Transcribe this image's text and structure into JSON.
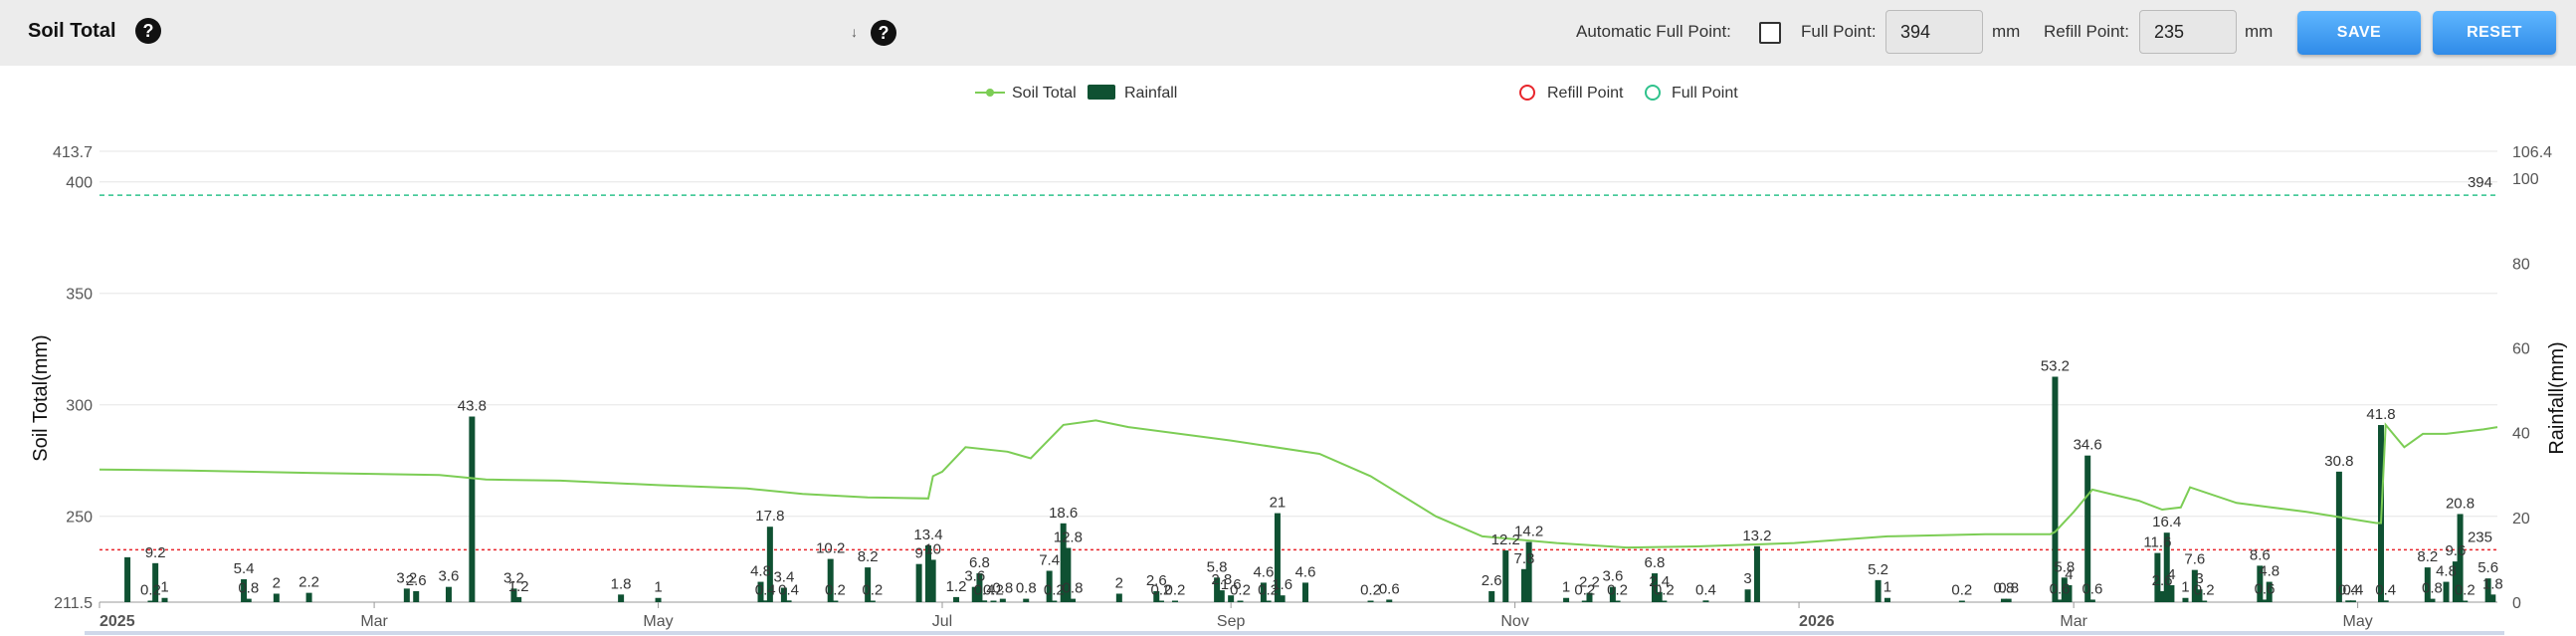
{
  "toolbar": {
    "title": "Soil Total",
    "auto_full_point_label": "Automatic Full Point:",
    "full_point_label": "Full Point:",
    "full_point_value": "394",
    "full_point_unit": "mm",
    "refill_point_label": "Refill Point:",
    "refill_point_value": "235",
    "refill_point_unit": "mm",
    "save_label": "SAVE",
    "reset_label": "RESET",
    "tick_glyph": "↓",
    "help_glyph": "?"
  },
  "chart_data": {
    "type": "bar",
    "legend": {
      "soil_total": "Soil Total",
      "rainfall": "Rainfall",
      "refill_point": "Refill Point",
      "full_point": "Full Point"
    },
    "ylabel_left": "Soil Total(mm)",
    "ylabel_right": "Rainfall(mm)",
    "left_axis": {
      "min": 211.5,
      "max": 413.7,
      "ticks": [
        "211.5",
        "250",
        "300",
        "350",
        "400",
        "413.7"
      ]
    },
    "right_axis": {
      "min": 0,
      "max": 106.4,
      "ticks": [
        "0",
        "20",
        "40",
        "60",
        "80",
        "100",
        "106.4"
      ]
    },
    "x_axis": {
      "start": "2025-01-01",
      "end": "2026-05-31",
      "ticks": [
        {
          "date": "2025-01-01",
          "label": "2025",
          "bold": true
        },
        {
          "date": "2025-03-01",
          "label": "Mar"
        },
        {
          "date": "2025-05-01",
          "label": "May"
        },
        {
          "date": "2025-07-01",
          "label": "Jul"
        },
        {
          "date": "2025-09-01",
          "label": "Sep"
        },
        {
          "date": "2025-11-01",
          "label": "Nov"
        },
        {
          "date": "2026-01-01",
          "label": "2026",
          "bold": true
        },
        {
          "date": "2026-03-01",
          "label": "Mar"
        },
        {
          "date": "2026-05-01",
          "label": "May"
        }
      ]
    },
    "full_point": {
      "value": 394,
      "label": "394",
      "color": "#2fc28c"
    },
    "refill_point": {
      "value": 235,
      "label": "235",
      "color": "#e8252b"
    },
    "colors": {
      "soil_line": "#7ccd55",
      "rain_bar": "#0f5132"
    },
    "soil_total_series": [
      [
        "2025-01-01",
        271
      ],
      [
        "2025-01-20",
        270.5
      ],
      [
        "2025-02-15",
        269.5
      ],
      [
        "2025-03-15",
        268.5
      ],
      [
        "2025-03-25",
        266.5
      ],
      [
        "2025-04-10",
        266
      ],
      [
        "2025-05-01",
        264
      ],
      [
        "2025-05-20",
        262.5
      ],
      [
        "2025-06-01",
        260
      ],
      [
        "2025-06-15",
        258.5
      ],
      [
        "2025-06-28",
        258
      ],
      [
        "2025-06-29",
        268
      ],
      [
        "2025-07-01",
        270
      ],
      [
        "2025-07-06",
        281
      ],
      [
        "2025-07-15",
        279
      ],
      [
        "2025-07-20",
        276
      ],
      [
        "2025-07-27",
        291
      ],
      [
        "2025-08-03",
        293
      ],
      [
        "2025-08-10",
        290
      ],
      [
        "2025-09-01",
        284
      ],
      [
        "2025-09-20",
        278
      ],
      [
        "2025-10-01",
        268
      ],
      [
        "2025-10-15",
        250
      ],
      [
        "2025-10-25",
        241
      ],
      [
        "2025-11-10",
        238
      ],
      [
        "2025-11-25",
        236
      ],
      [
        "2025-12-10",
        236.5
      ],
      [
        "2025-12-31",
        238
      ],
      [
        "2026-01-20",
        241
      ],
      [
        "2026-02-10",
        242
      ],
      [
        "2026-02-24",
        242
      ],
      [
        "2026-02-25",
        243
      ],
      [
        "2026-03-01",
        252
      ],
      [
        "2026-03-05",
        262
      ],
      [
        "2026-03-15",
        257
      ],
      [
        "2026-03-20",
        253
      ],
      [
        "2026-03-24",
        254
      ],
      [
        "2026-03-26",
        263
      ],
      [
        "2026-04-05",
        256
      ],
      [
        "2026-04-20",
        252
      ],
      [
        "2026-05-05",
        247
      ],
      [
        "2026-05-06",
        247
      ],
      [
        "2026-05-07",
        291
      ],
      [
        "2026-05-11",
        281
      ],
      [
        "2026-05-15",
        287
      ],
      [
        "2026-05-20",
        287
      ],
      [
        "2026-05-28",
        289
      ],
      [
        "2026-05-31",
        290
      ]
    ],
    "rainfall": [
      [
        "2025-01-07",
        10.6,
        ""
      ],
      [
        "2025-01-12",
        0.2,
        "0.2"
      ],
      [
        "2025-01-13",
        9.2,
        "9.2"
      ],
      [
        "2025-01-15",
        1,
        "1"
      ],
      [
        "2025-02-01",
        5.4,
        "5.4"
      ],
      [
        "2025-02-02",
        0.8,
        "0.8"
      ],
      [
        "2025-02-08",
        2,
        "2"
      ],
      [
        "2025-02-15",
        2.2,
        "2.2"
      ],
      [
        "2025-03-08",
        3.2,
        "3.2"
      ],
      [
        "2025-03-10",
        2.6,
        "2.6"
      ],
      [
        "2025-03-17",
        3.6,
        "3.6"
      ],
      [
        "2025-03-22",
        43.8,
        "43.8"
      ],
      [
        "2025-03-31",
        3.2,
        "3.2"
      ],
      [
        "2025-04-01",
        1.2,
        "1.2"
      ],
      [
        "2025-04-23",
        1.8,
        "1.8"
      ],
      [
        "2025-05-01",
        1,
        "1"
      ],
      [
        "2025-05-23",
        4.8,
        "4.8"
      ],
      [
        "2025-05-24",
        0.4,
        "0.4"
      ],
      [
        "2025-05-25",
        17.8,
        "17.8"
      ],
      [
        "2025-05-28",
        3.4,
        "3.4"
      ],
      [
        "2025-05-29",
        0.4,
        "0.4"
      ],
      [
        "2025-06-07",
        10.2,
        "10.2"
      ],
      [
        "2025-06-08",
        0.2,
        "0.2"
      ],
      [
        "2025-06-15",
        8.2,
        "8.2"
      ],
      [
        "2025-06-16",
        0.2,
        "0.2"
      ],
      [
        "2025-06-26",
        9,
        "9"
      ],
      [
        "2025-06-28",
        13.4,
        "13.4"
      ],
      [
        "2025-06-29",
        10,
        "10"
      ],
      [
        "2025-07-04",
        1.2,
        "1.2"
      ],
      [
        "2025-07-08",
        3.6,
        "3.6"
      ],
      [
        "2025-07-09",
        6.8,
        "6.8"
      ],
      [
        "2025-07-10",
        0.4,
        "0.4"
      ],
      [
        "2025-07-12",
        0.2,
        "0.2"
      ],
      [
        "2025-07-14",
        0.8,
        "0.8"
      ],
      [
        "2025-07-19",
        0.8,
        "0.8"
      ],
      [
        "2025-07-24",
        7.4,
        "7.4"
      ],
      [
        "2025-07-25",
        0.2,
        "0.2"
      ],
      [
        "2025-07-27",
        18.6,
        "18.6"
      ],
      [
        "2025-07-28",
        12.8,
        "12.8"
      ],
      [
        "2025-07-29",
        0.8,
        "0.8"
      ],
      [
        "2025-08-08",
        2,
        "2"
      ],
      [
        "2025-08-16",
        2.6,
        "2.6"
      ],
      [
        "2025-08-17",
        0.2,
        "0.2"
      ],
      [
        "2025-08-20",
        0.2,
        "0.2"
      ],
      [
        "2025-08-29",
        5.8,
        "5.8"
      ],
      [
        "2025-08-30",
        2.8,
        "2.8"
      ],
      [
        "2025-09-01",
        1.6,
        "1.6"
      ],
      [
        "2025-09-03",
        0.2,
        "0.2"
      ],
      [
        "2025-09-08",
        4.6,
        "4.6"
      ],
      [
        "2025-09-09",
        0.2,
        "0.2"
      ],
      [
        "2025-09-11",
        21,
        "21"
      ],
      [
        "2025-09-12",
        1.6,
        "1.6"
      ],
      [
        "2025-09-17",
        4.6,
        "4.6"
      ],
      [
        "2025-10-01",
        0.2,
        "0.2"
      ],
      [
        "2025-10-05",
        0.6,
        "0.6"
      ],
      [
        "2025-10-27",
        2.6,
        "2.6"
      ],
      [
        "2025-10-30",
        12.2,
        "12.2"
      ],
      [
        "2025-11-03",
        7.8,
        "7.8"
      ],
      [
        "2025-11-04",
        14.2,
        "14.2"
      ],
      [
        "2025-11-12",
        1,
        "1"
      ],
      [
        "2025-11-16",
        0.2,
        "0.2"
      ],
      [
        "2025-11-17",
        2.2,
        "2.2"
      ],
      [
        "2025-11-22",
        3.6,
        "3.6"
      ],
      [
        "2025-11-23",
        0.2,
        "0.2"
      ],
      [
        "2025-12-01",
        6.8,
        "6.8"
      ],
      [
        "2025-12-02",
        2.4,
        "2.4"
      ],
      [
        "2025-12-03",
        0.2,
        "0.2"
      ],
      [
        "2025-12-12",
        0.4,
        "0.4"
      ],
      [
        "2025-12-21",
        3,
        "3"
      ],
      [
        "2025-12-23",
        13.2,
        "13.2"
      ],
      [
        "2026-01-18",
        5.2,
        "5.2"
      ],
      [
        "2026-01-20",
        1,
        "1"
      ],
      [
        "2026-02-05",
        0.2,
        "0.2"
      ],
      [
        "2026-02-14",
        0.8,
        "0.8"
      ],
      [
        "2026-02-15",
        0.8,
        "0.8"
      ],
      [
        "2026-02-25",
        53.2,
        "53.2"
      ],
      [
        "2026-02-26",
        0.6,
        "0.6"
      ],
      [
        "2026-02-27",
        5.8,
        "5.8"
      ],
      [
        "2026-02-28",
        4,
        "4"
      ],
      [
        "2026-03-04",
        34.6,
        "34.6"
      ],
      [
        "2026-03-05",
        0.6,
        "0.6"
      ],
      [
        "2026-03-19",
        11.6,
        "11.6"
      ],
      [
        "2026-03-20",
        2.6,
        "2.6"
      ],
      [
        "2026-03-21",
        16.4,
        "16.4"
      ],
      [
        "2026-03-22",
        4,
        "4"
      ],
      [
        "2026-03-25",
        1,
        "1"
      ],
      [
        "2026-03-27",
        7.6,
        "7.6"
      ],
      [
        "2026-03-28",
        3,
        "3"
      ],
      [
        "2026-03-29",
        0.2,
        "0.2"
      ],
      [
        "2026-04-10",
        8.6,
        "8.6"
      ],
      [
        "2026-04-11",
        0.6,
        "0.6"
      ],
      [
        "2026-04-12",
        4.8,
        "4.8"
      ],
      [
        "2026-04-27",
        30.8,
        "30.8"
      ],
      [
        "2026-04-29",
        0.4,
        "0.4"
      ],
      [
        "2026-04-30",
        0.4,
        "0.4"
      ],
      [
        "2026-05-06",
        41.8,
        "41.8"
      ],
      [
        "2026-05-07",
        0.4,
        "0.4"
      ],
      [
        "2026-05-16",
        8.2,
        "8.2"
      ],
      [
        "2026-05-17",
        0.8,
        "0.8"
      ],
      [
        "2026-05-20",
        4.8,
        "4.8"
      ],
      [
        "2026-05-22",
        9.6,
        "9.6"
      ],
      [
        "2026-05-23",
        20.8,
        "20.8"
      ],
      [
        "2026-05-24",
        0.2,
        "0.2"
      ],
      [
        "2026-05-29",
        5.6,
        "5.6"
      ],
      [
        "2026-05-30",
        1.8,
        "1.8"
      ]
    ]
  }
}
